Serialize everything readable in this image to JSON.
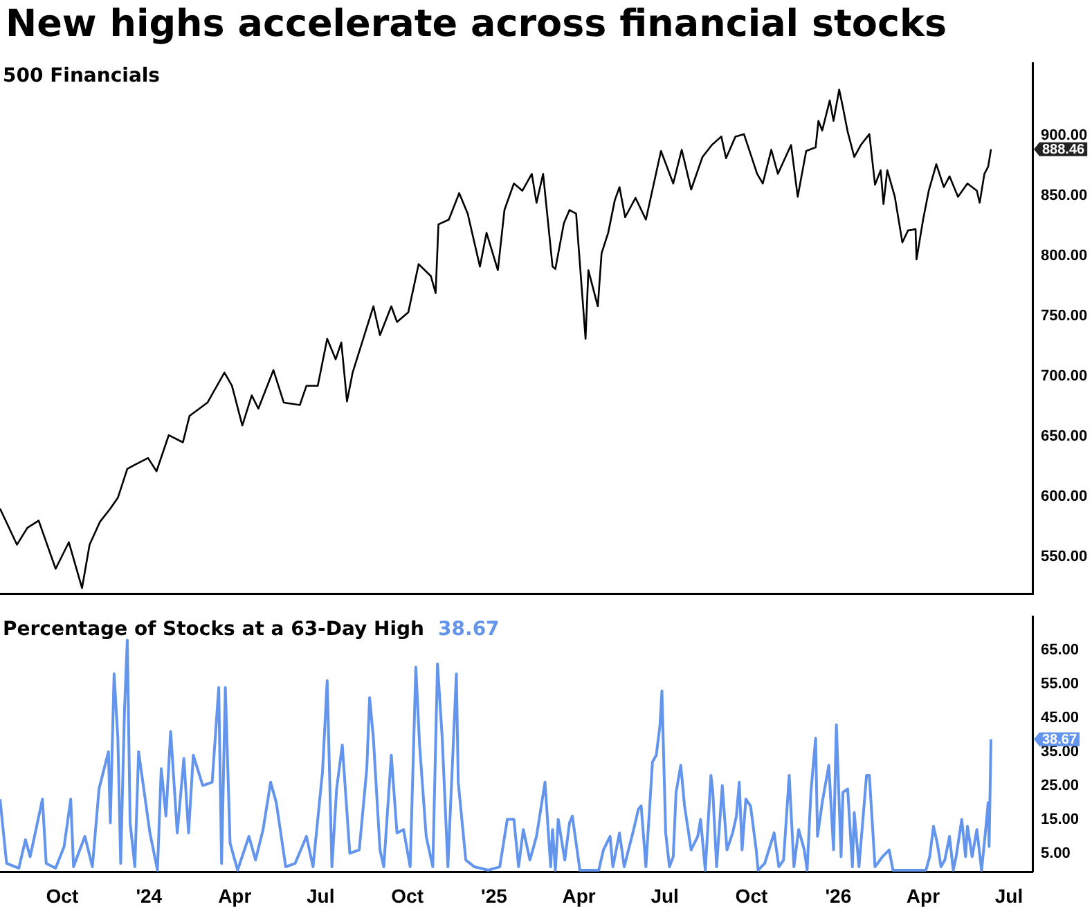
{
  "chart_data": [
    {
      "type": "line",
      "title": "New highs accelerate across financial stocks",
      "legend": "top left",
      "tick_labels": "y",
      "marker": "none",
      "line_style": "solid",
      "xlim": [
        "2023-07-27",
        "2026-07-26"
      ],
      "ylim": [
        519,
        960
      ],
      "yticks": [
        {
          "value": 550,
          "label": "550.00"
        },
        {
          "value": 600,
          "label": "600.00"
        },
        {
          "value": 650,
          "label": "650.00"
        },
        {
          "value": 700,
          "label": "700.00"
        },
        {
          "value": 750,
          "label": "750.00"
        },
        {
          "value": 800,
          "label": "800.00"
        },
        {
          "value": 850,
          "label": "850.00"
        },
        {
          "value": 900,
          "label": "900.00"
        }
      ],
      "x": [
        "2023-07-27",
        "2023-08-14",
        "2023-08-25",
        "2023-09-06",
        "2023-09-24",
        "2023-10-08",
        "2023-10-22",
        "2023-10-30",
        "2023-11-10",
        "2023-11-21",
        "2023-11-29",
        "2023-12-09",
        "2023-12-16",
        "2023-12-31",
        "2024-01-09",
        "2024-01-22",
        "2024-02-06",
        "2024-02-13",
        "2024-03-03",
        "2024-03-21",
        "2024-03-29",
        "2024-04-09",
        "2024-04-19",
        "2024-04-26",
        "2024-05-12",
        "2024-05-23",
        "2024-06-09",
        "2024-06-16",
        "2024-06-28",
        "2024-07-08",
        "2024-07-17",
        "2024-07-23",
        "2024-07-29",
        "2024-08-04",
        "2024-08-14",
        "2024-08-26",
        "2024-09-02",
        "2024-09-14",
        "2024-09-20",
        "2024-10-02",
        "2024-10-13",
        "2024-10-26",
        "2024-10-31",
        "2024-11-03",
        "2024-11-14",
        "2024-11-25",
        "2024-12-04",
        "2024-12-17",
        "2024-12-24",
        "2025-01-05",
        "2025-01-12",
        "2025-01-22",
        "2025-01-31",
        "2025-02-10",
        "2025-02-15",
        "2025-02-22",
        "2025-03-04",
        "2025-03-07",
        "2025-03-16",
        "2025-03-22",
        "2025-03-29",
        "2025-04-08",
        "2025-04-11",
        "2025-04-21",
        "2025-04-25",
        "2025-05-02",
        "2025-05-09",
        "2025-05-14",
        "2025-05-20",
        "2025-05-31",
        "2025-06-11",
        "2025-06-27",
        "2025-07-10",
        "2025-07-19",
        "2025-07-29",
        "2025-08-10",
        "2025-08-20",
        "2025-08-30",
        "2025-09-04",
        "2025-09-14",
        "2025-09-23",
        "2025-10-07",
        "2025-10-13",
        "2025-10-22",
        "2025-10-29",
        "2025-11-12",
        "2025-11-19",
        "2025-11-28",
        "2025-12-08",
        "2025-12-11",
        "2025-12-15",
        "2025-12-23",
        "2025-12-27",
        "2026-01-02",
        "2026-01-06",
        "2026-01-11",
        "2026-01-18",
        "2026-01-25",
        "2026-02-03",
        "2026-02-09",
        "2026-02-15",
        "2026-02-18",
        "2026-02-22",
        "2026-03-02",
        "2026-03-10",
        "2026-03-16",
        "2026-03-24",
        "2026-03-25",
        "2026-04-01",
        "2026-04-07",
        "2026-04-15",
        "2026-04-23",
        "2026-04-29",
        "2026-05-08",
        "2026-05-18",
        "2026-05-28",
        "2026-05-31",
        "2026-06-05",
        "2026-06-09",
        "2026-06-12"
      ],
      "series": [
        {
          "name": "500 Financials",
          "color": "#000000",
          "values": [
            590,
            560,
            574,
            580,
            540,
            562,
            524,
            560,
            579,
            590,
            599,
            623,
            626,
            632,
            621,
            651,
            645,
            667,
            678,
            703,
            692,
            659,
            684,
            673,
            705,
            678,
            676,
            692,
            692,
            731,
            714,
            728,
            679,
            703,
            728,
            758,
            734,
            758,
            745,
            753,
            793,
            783,
            769,
            826,
            830,
            852,
            835,
            791,
            819,
            788,
            838,
            860,
            854,
            868,
            844,
            868,
            791,
            789,
            827,
            838,
            835,
            731,
            788,
            758,
            802,
            819,
            846,
            857,
            832,
            848,
            830,
            887,
            860,
            888,
            855,
            882,
            892,
            899,
            881,
            899,
            901,
            868,
            860,
            888,
            868,
            892,
            849,
            887,
            890,
            912,
            904,
            929,
            912,
            938,
            923,
            903,
            882,
            892,
            901,
            859,
            871,
            843,
            871,
            849,
            811,
            821,
            822,
            797,
            830,
            854,
            876,
            857,
            866,
            849,
            860,
            854,
            844,
            868,
            874,
            888.46
          ]
        }
      ],
      "annotations": [
        "888.46"
      ]
    },
    {
      "type": "line",
      "legend": "top left",
      "marker": "none",
      "line_style": "solid",
      "xlim": [
        "2023-07-27",
        "2026-07-26"
      ],
      "ylim": [
        -0.5,
        75
      ],
      "xticks": [
        {
          "value": "2023-10-01",
          "label": "Oct"
        },
        {
          "value": "2024-01-01",
          "label": "'24"
        },
        {
          "value": "2024-04-01",
          "label": "Apr"
        },
        {
          "value": "2024-07-01",
          "label": "Jul"
        },
        {
          "value": "2024-10-01",
          "label": "Oct"
        },
        {
          "value": "2025-01-01",
          "label": "'25"
        },
        {
          "value": "2025-04-01",
          "label": "Apr"
        },
        {
          "value": "2025-07-01",
          "label": "Jul"
        },
        {
          "value": "2025-10-01",
          "label": "Oct"
        },
        {
          "value": "2026-01-01",
          "label": "'26"
        },
        {
          "value": "2026-04-01",
          "label": "Apr"
        },
        {
          "value": "2026-07-01",
          "label": "Jul"
        }
      ],
      "yticks": [
        {
          "value": 5,
          "label": "5.00"
        },
        {
          "value": 15,
          "label": "15.00"
        },
        {
          "value": 25,
          "label": "25.00"
        },
        {
          "value": 35,
          "label": "35.00"
        },
        {
          "value": 45,
          "label": "45.00"
        },
        {
          "value": 55,
          "label": "55.00"
        },
        {
          "value": 65,
          "label": "65.00"
        }
      ],
      "x": [
        "2023-07-27",
        "2023-08-03",
        "2023-08-16",
        "2023-08-23",
        "2023-08-28",
        "2023-09-10",
        "2023-09-14",
        "2023-09-24",
        "2023-10-03",
        "2023-10-10",
        "2023-10-13",
        "2023-10-25",
        "2023-11-02",
        "2023-11-09",
        "2023-11-19",
        "2023-11-21",
        "2023-11-25",
        "2023-11-29",
        "2023-12-02",
        "2023-12-06",
        "2023-12-09",
        "2023-12-12",
        "2023-12-17",
        "2023-12-21",
        "2023-12-28",
        "2024-01-02",
        "2024-01-10",
        "2024-01-14",
        "2024-01-19",
        "2024-01-24",
        "2024-01-31",
        "2024-02-07",
        "2024-02-12",
        "2024-02-17",
        "2024-02-27",
        "2024-03-08",
        "2024-03-15",
        "2024-03-18",
        "2024-03-22",
        "2024-03-27",
        "2024-04-04",
        "2024-04-16",
        "2024-04-23",
        "2024-05-01",
        "2024-05-09",
        "2024-05-15",
        "2024-05-25",
        "2024-06-04",
        "2024-06-16",
        "2024-06-23",
        "2024-07-03",
        "2024-07-08",
        "2024-07-13",
        "2024-07-18",
        "2024-07-24",
        "2024-08-01",
        "2024-08-11",
        "2024-08-19",
        "2024-08-22",
        "2024-08-26",
        "2024-09-02",
        "2024-09-06",
        "2024-09-14",
        "2024-09-20",
        "2024-09-27",
        "2024-10-04",
        "2024-10-10",
        "2024-10-14",
        "2024-10-21",
        "2024-10-28",
        "2024-11-02",
        "2024-11-07",
        "2024-11-13",
        "2024-11-22",
        "2024-11-24",
        "2024-12-02",
        "2024-12-11",
        "2024-12-26",
        "2025-01-07",
        "2025-01-15",
        "2025-01-22",
        "2025-01-27",
        "2025-02-01",
        "2025-02-08",
        "2025-02-15",
        "2025-02-24",
        "2025-03-02",
        "2025-03-04",
        "2025-03-07",
        "2025-03-10",
        "2025-03-17",
        "2025-03-22",
        "2025-03-25",
        "2025-03-29",
        "2025-04-02",
        "2025-04-22",
        "2025-04-27",
        "2025-05-04",
        "2025-05-07",
        "2025-05-14",
        "2025-05-19",
        "2025-05-29",
        "2025-06-03",
        "2025-06-06",
        "2025-06-11",
        "2025-06-18",
        "2025-06-22",
        "2025-06-26",
        "2025-06-28",
        "2025-07-02",
        "2025-07-06",
        "2025-07-10",
        "2025-07-13",
        "2025-07-18",
        "2025-07-22",
        "2025-07-29",
        "2025-08-05",
        "2025-08-08",
        "2025-08-13",
        "2025-08-19",
        "2025-08-21",
        "2025-08-25",
        "2025-08-31",
        "2025-09-05",
        "2025-09-11",
        "2025-09-15",
        "2025-09-18",
        "2025-09-21",
        "2025-09-25",
        "2025-09-30",
        "2025-10-06",
        "2025-10-08",
        "2025-10-15",
        "2025-10-25",
        "2025-10-30",
        "2025-11-04",
        "2025-11-10",
        "2025-11-15",
        "2025-11-20",
        "2025-11-26",
        "2025-11-29",
        "2025-12-03",
        "2025-12-08",
        "2025-12-10",
        "2025-12-15",
        "2025-12-22",
        "2025-12-27",
        "2025-12-30",
        "2026-01-04",
        "2026-01-06",
        "2026-01-11",
        "2026-01-16",
        "2026-01-18",
        "2026-01-23",
        "2026-01-31",
        "2026-02-03",
        "2026-02-09",
        "2026-02-17",
        "2026-02-24",
        "2026-02-28",
        "2026-04-04",
        "2026-04-08",
        "2026-04-12",
        "2026-04-16",
        "2026-04-20",
        "2026-04-24",
        "2026-04-29",
        "2026-05-03",
        "2026-05-06",
        "2026-05-12",
        "2026-05-16",
        "2026-05-18",
        "2026-05-23",
        "2026-05-28",
        "2026-06-02",
        "2026-06-06",
        "2026-06-09",
        "2026-06-10",
        "2026-06-12"
      ],
      "series": [
        {
          "name": "Percentage of Stocks at a 63-Day High",
          "color": "#6495ed",
          "values": [
            21,
            2,
            0.6,
            9,
            4,
            21,
            2,
            0.6,
            7,
            21,
            1,
            10,
            1,
            24,
            35,
            14,
            58,
            39,
            2,
            47,
            68,
            14,
            1,
            35,
            21,
            11,
            0,
            30,
            16,
            41,
            11,
            33,
            11,
            34,
            25,
            26,
            54,
            2,
            54,
            8,
            0,
            10,
            3,
            12,
            26,
            20,
            1,
            2,
            10,
            1,
            29,
            56,
            1,
            24,
            37,
            5,
            6,
            30,
            51,
            39,
            6,
            1,
            34,
            11,
            12,
            1,
            60,
            37,
            10,
            1,
            61,
            39,
            1,
            58,
            26,
            3,
            1,
            0,
            1,
            15,
            15,
            1,
            12,
            3,
            10,
            26,
            1,
            12,
            0,
            15,
            3,
            14,
            16,
            8,
            0,
            0,
            6,
            10,
            1,
            11,
            1,
            12,
            18,
            19,
            1,
            32,
            34,
            43,
            53,
            11,
            1,
            4,
            23,
            31,
            19,
            6,
            10,
            15,
            0,
            28,
            23,
            1,
            25,
            6,
            11,
            16,
            26,
            6,
            21,
            19,
            6,
            0,
            2,
            11,
            1,
            3,
            28,
            1,
            12,
            6,
            0,
            23,
            39,
            10,
            20,
            31,
            6,
            43,
            4,
            23,
            24,
            1,
            17,
            1,
            28,
            28,
            1,
            4,
            6,
            0,
            0,
            4,
            13,
            8,
            1,
            3,
            10,
            0,
            4,
            15,
            4,
            13,
            4,
            12,
            0,
            11,
            20,
            7,
            38.67
          ]
        }
      ],
      "annotations": [
        "38.67"
      ]
    }
  ]
}
